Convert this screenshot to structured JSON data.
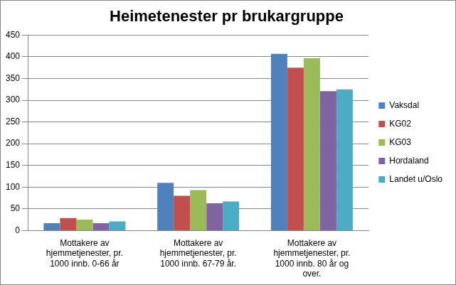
{
  "chart_data": {
    "type": "bar",
    "title": "Heimetenester pr brukargruppe",
    "categories": [
      "Mottakere av hjemmetjenester, pr. 1000 innb. 0-66 år",
      "Mottakere av hjemmetjenester, pr. 1000 innb. 67-79 år.",
      "Mottakere av hjemmetjenester, pr. 1000 innb. 80 år og over."
    ],
    "series": [
      {
        "name": "Vaksdal",
        "color": "#4f81bd",
        "values": [
          17,
          110,
          407
        ]
      },
      {
        "name": "KG02",
        "color": "#c0504d",
        "values": [
          29,
          80,
          375
        ]
      },
      {
        "name": "KG03",
        "color": "#9bbb59",
        "values": [
          25,
          93,
          397
        ]
      },
      {
        "name": "Hordaland",
        "color": "#8064a2",
        "values": [
          17,
          63,
          321
        ]
      },
      {
        "name": "Landet u/Oslo",
        "color": "#4bacc6",
        "values": [
          21,
          67,
          325
        ]
      }
    ],
    "ylim": [
      0,
      450
    ],
    "yticks": [
      0,
      50,
      100,
      150,
      200,
      250,
      300,
      350,
      400,
      450
    ],
    "grid": true,
    "legend": "right"
  }
}
